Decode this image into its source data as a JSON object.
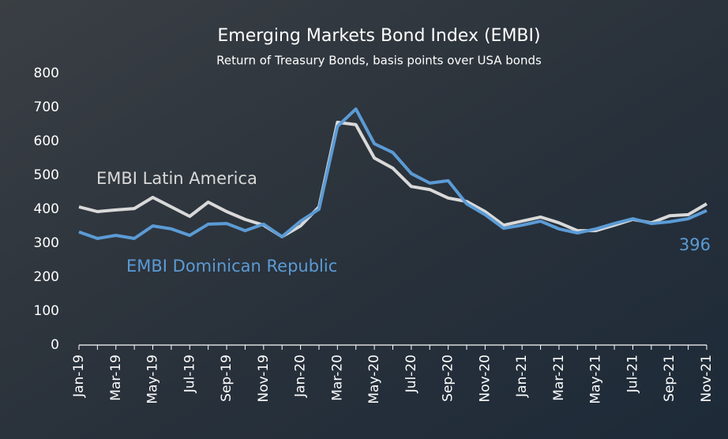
{
  "chart_data": {
    "type": "line",
    "title": "Emerging Markets Bond Index (EMBI)",
    "subtitle": "Return of Treasury Bonds, basis points over USA bonds",
    "categories": [
      "Jan-19",
      null,
      "Mar-19",
      null,
      "May-19",
      null,
      "Jul-19",
      null,
      "Sep-19",
      null,
      "Nov-19",
      null,
      "Jan-20",
      null,
      "Mar-20",
      null,
      "May-20",
      null,
      "Jul-20",
      null,
      "Sep-20",
      null,
      "Nov-20",
      null,
      "Jan-21",
      null,
      "Mar-21",
      null,
      "May-21",
      null,
      "Jul-21",
      null,
      "Sep-21",
      null,
      "Nov-21"
    ],
    "series": [
      {
        "name": "EMBI Latin America",
        "color": "#d9d9d9",
        "values": [
          407,
          393,
          398,
          402,
          435,
          407,
          379,
          421,
          393,
          370,
          353,
          319,
          351,
          407,
          656,
          649,
          551,
          521,
          467,
          458,
          433,
          423,
          393,
          353,
          365,
          377,
          360,
          337,
          337,
          353,
          370,
          360,
          381,
          384,
          416
        ]
      },
      {
        "name": "EMBI Dominican Republic",
        "color": "#5b9bd5",
        "values": [
          333,
          314,
          323,
          314,
          351,
          342,
          323,
          356,
          358,
          337,
          356,
          319,
          365,
          400,
          644,
          695,
          593,
          567,
          505,
          477,
          484,
          416,
          384,
          344,
          353,
          365,
          342,
          330,
          342,
          358,
          372,
          358,
          363,
          372,
          396
        ]
      }
    ],
    "ylim": [
      0,
      800
    ],
    "yticks": [
      0,
      100,
      200,
      300,
      400,
      500,
      600,
      700,
      800
    ],
    "grid": false
  }
}
